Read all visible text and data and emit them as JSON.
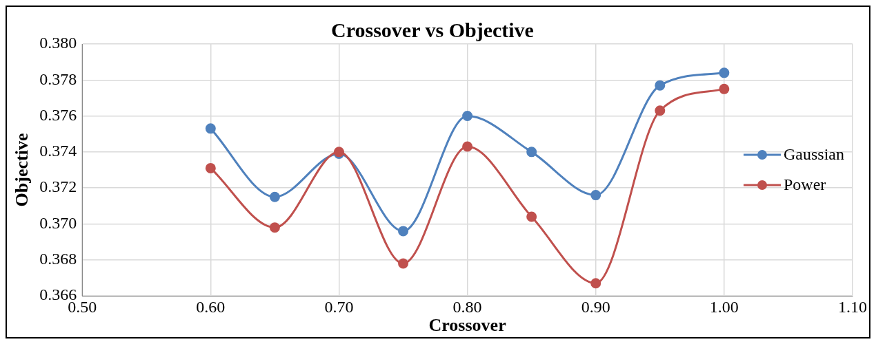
{
  "chart_data": {
    "type": "line",
    "title": "Crossover vs Objective",
    "xlabel": "Crossover",
    "ylabel": "Objective",
    "x": [
      0.6,
      0.65,
      0.7,
      0.75,
      0.8,
      0.85,
      0.9,
      0.95,
      1.0
    ],
    "series": [
      {
        "name": "Gaussian",
        "color": "#4f81bd",
        "values": [
          0.3753,
          0.3715,
          0.3739,
          0.3696,
          0.376,
          0.374,
          0.3716,
          0.3777,
          0.3784
        ]
      },
      {
        "name": "Power",
        "color": "#c0504d",
        "values": [
          0.3731,
          0.3698,
          0.374,
          0.3678,
          0.3743,
          0.3704,
          0.3667,
          0.3763,
          0.3775
        ]
      }
    ],
    "xlim": [
      0.5,
      1.1
    ],
    "xticks": [
      {
        "value": 0.5,
        "label": "0.50"
      },
      {
        "value": 0.6,
        "label": "0.60"
      },
      {
        "value": 0.7,
        "label": "0.70"
      },
      {
        "value": 0.8,
        "label": "0.80"
      },
      {
        "value": 0.9,
        "label": "0.90"
      },
      {
        "value": 1.0,
        "label": "1.00"
      },
      {
        "value": 1.1,
        "label": "1.10"
      }
    ],
    "ylim": [
      0.366,
      0.38
    ],
    "yticks": [
      {
        "value": 0.366,
        "label": "0.366"
      },
      {
        "value": 0.368,
        "label": "0.368"
      },
      {
        "value": 0.37,
        "label": "0.370"
      },
      {
        "value": 0.372,
        "label": "0.372"
      },
      {
        "value": 0.374,
        "label": "0.374"
      },
      {
        "value": 0.376,
        "label": "0.376"
      },
      {
        "value": 0.378,
        "label": "0.378"
      },
      {
        "value": 0.38,
        "label": "0.380"
      }
    ],
    "grid": true,
    "legend": "right",
    "marker": "circle",
    "line_style": "solid"
  }
}
